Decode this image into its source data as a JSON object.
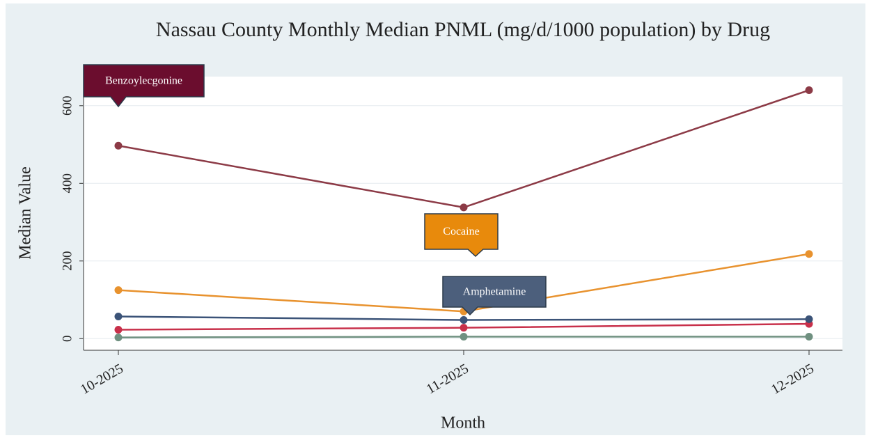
{
  "chart_data": {
    "type": "line",
    "title": "Nassau County Monthly Median PNML (mg/d/1000 population) by Drug",
    "x_label": "Month",
    "y_label": "Median Value",
    "categories": [
      "10-2025",
      "11-2025",
      "12-2025"
    ],
    "series": [
      {
        "name": "Benzoylecgonine",
        "color": "#8c3a46",
        "label_color": "#6b0d2e",
        "values": [
          497,
          338,
          640
        ]
      },
      {
        "name": "Cocaine",
        "color": "#e8922e",
        "label_color": "#e88a0c",
        "values": [
          125,
          70,
          218
        ]
      },
      {
        "name": "Amphetamine",
        "color": "#3b5378",
        "label_color": "#4c5f7c",
        "values": [
          57,
          48,
          50
        ]
      },
      {
        "color": "#c8304a",
        "values": [
          23,
          28,
          38
        ]
      },
      {
        "color": "#6f9080",
        "values": [
          3,
          5,
          5
        ]
      }
    ],
    "ylim": [
      -30,
      675
    ],
    "yticks": [
      0,
      200,
      400,
      600
    ],
    "grid": true
  }
}
